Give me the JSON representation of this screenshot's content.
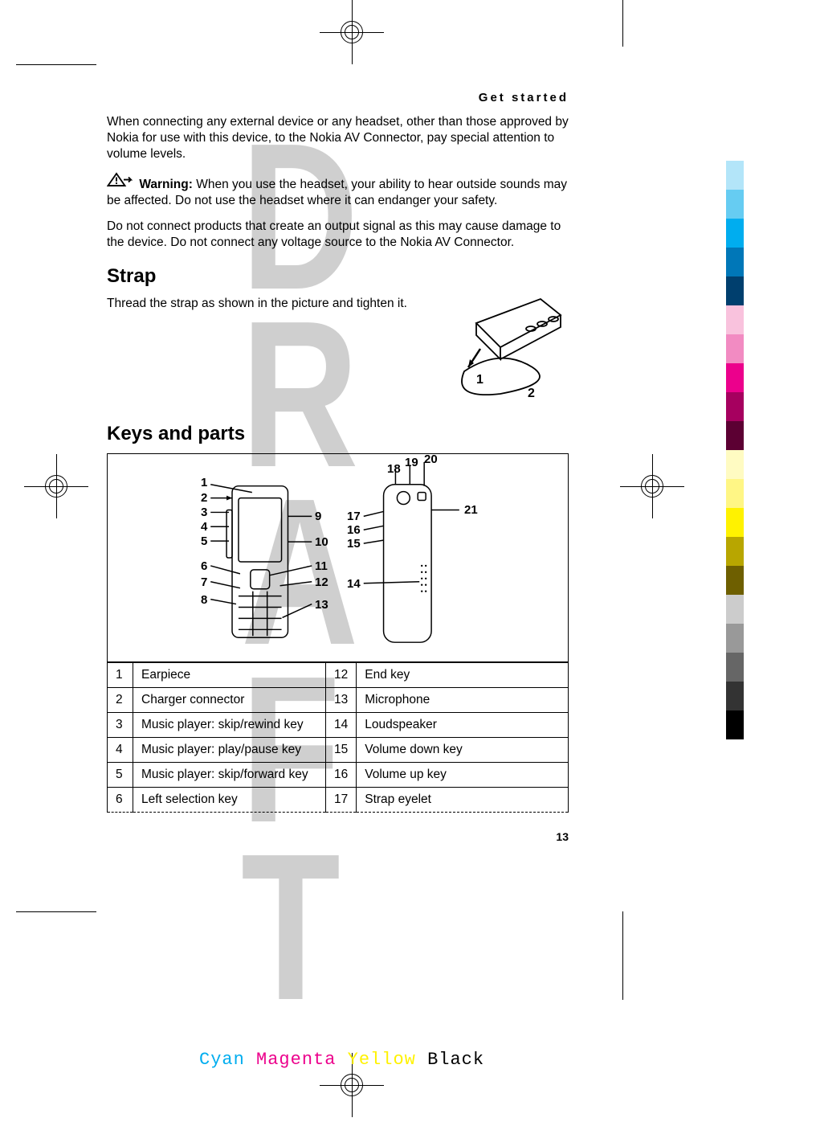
{
  "running_head": "Get started",
  "intro_paragraph": "When connecting any external device or any headset, other than those approved by Nokia for use with this device, to the Nokia AV Connector, pay special attention to volume levels.",
  "warning_label": "Warning:",
  "warning_text": "When you use the headset, your ability to hear outside sounds may be affected. Do not use the headset where it can endanger your safety.",
  "post_warning_text": "Do not connect products that create an output signal as this may cause damage to the device. Do not connect any voltage source to the Nokia AV Connector.",
  "strap_heading": "Strap",
  "strap_text": "Thread the strap as shown in the picture and tighten it.",
  "strap_labels": {
    "one": "1",
    "two": "2"
  },
  "keys_heading": "Keys and parts",
  "diagram_labels": {
    "l1": "1",
    "l2": "2",
    "l3": "3",
    "l4": "4",
    "l5": "5",
    "l6": "6",
    "l7": "7",
    "l8": "8",
    "l9": "9",
    "l10": "10",
    "l11": "11",
    "l12": "12",
    "l13": "13",
    "l14": "14",
    "l15": "15",
    "l16": "16",
    "l17": "17",
    "l18": "18",
    "l19": "19",
    "l20": "20",
    "l21": "21"
  },
  "keys_table": [
    {
      "n1": "1",
      "t1": "Earpiece",
      "n2": "12",
      "t2": "End key"
    },
    {
      "n1": "2",
      "t1": "Charger connector",
      "n2": "13",
      "t2": "Microphone"
    },
    {
      "n1": "3",
      "t1": "Music player: skip/rewind key",
      "n2": "14",
      "t2": "Loudspeaker"
    },
    {
      "n1": "4",
      "t1": "Music player: play/pause key",
      "n2": "15",
      "t2": "Volume down key"
    },
    {
      "n1": "5",
      "t1": "Music player: skip/forward key",
      "n2": "16",
      "t2": "Volume up key"
    },
    {
      "n1": "6",
      "t1": "Left selection key",
      "n2": "17",
      "t2": "Strap eyelet"
    }
  ],
  "page_number": "13",
  "watermark": "DRAFT",
  "cmyk": {
    "c": "Cyan",
    "m": "Magenta",
    "y": "Yellow",
    "k": "Black"
  },
  "color_bar": [
    "#b3e5f9",
    "#66ccf2",
    "#00adef",
    "#0077b8",
    "#003f6e",
    "#f9c2dd",
    "#f28bc2",
    "#ec008c",
    "#a6005f",
    "#5c0033",
    "#fffbc2",
    "#fff685",
    "#fff200",
    "#b8a600",
    "#6e5f00",
    "#cccccc",
    "#999999",
    "#666666",
    "#333333",
    "#000000"
  ],
  "styles": {
    "body_font_size": 15.5,
    "heading_font_size": 24,
    "text_color": "#000000",
    "background_color": "#ffffff",
    "watermark_color": "#cfcfcf"
  }
}
